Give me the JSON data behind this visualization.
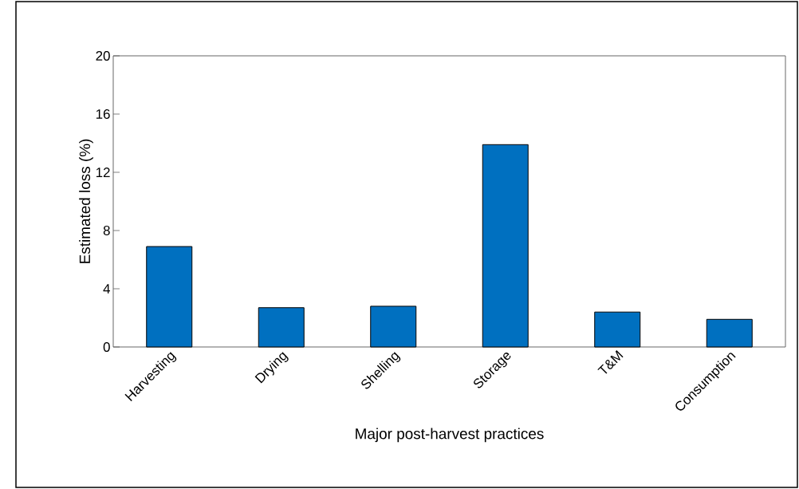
{
  "chart_data": {
    "type": "bar",
    "xlabel": "Major post-harvest practices",
    "ylabel": "Estimated loss (%)",
    "categories": [
      "Harvesting",
      "Drying",
      "Shelling",
      "Storage",
      "T&M",
      "Consumption"
    ],
    "values": [
      6.9,
      2.7,
      2.8,
      13.9,
      2.4,
      1.9
    ],
    "color": "#0070c0",
    "ylim": [
      0,
      20
    ],
    "yticks": [
      0,
      4,
      8,
      12,
      16,
      20
    ],
    "grid": false
  }
}
